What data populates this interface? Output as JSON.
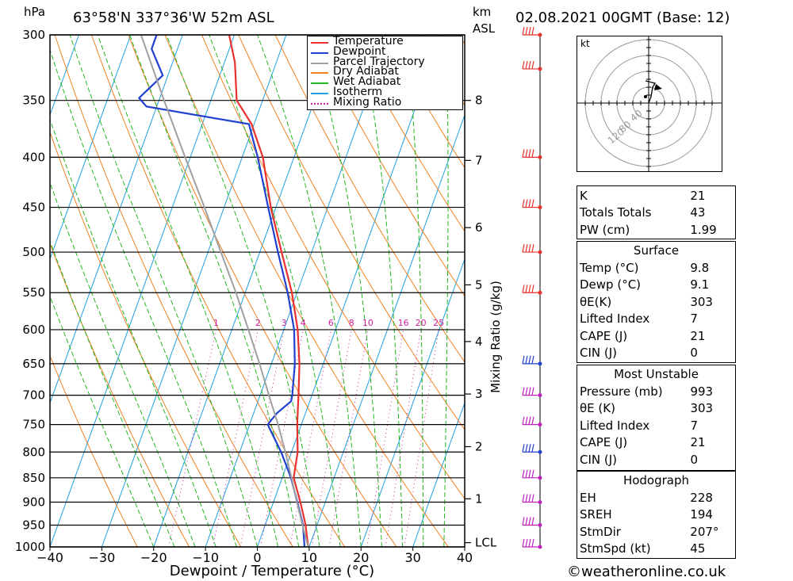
{
  "header": {
    "location": "63°58'N 337°36'W 52m ASL",
    "datetime": "02.08.2021 00GMT (Base: 12)",
    "hpa_label": "hPa",
    "km_label": "km",
    "asl_label": "ASL"
  },
  "chart_data": {
    "type": "line",
    "xlabel": "Dewpoint / Temperature (°C)",
    "ylabel": "hPa",
    "xlim": [
      -40,
      40
    ],
    "ylim": [
      1000,
      300
    ],
    "skew": true,
    "x_ticks": [
      "−40",
      "−30",
      "−20",
      "−10",
      "0",
      "10",
      "20",
      "30",
      "40"
    ],
    "pressure_levels": [
      300,
      350,
      400,
      450,
      500,
      550,
      600,
      650,
      700,
      750,
      800,
      850,
      900,
      950,
      1000
    ],
    "km_ticks": [
      {
        "label": "8",
        "p": 350
      },
      {
        "label": "7",
        "p": 403
      },
      {
        "label": "6",
        "p": 472
      },
      {
        "label": "5",
        "p": 540
      },
      {
        "label": "4",
        "p": 617
      },
      {
        "label": "3",
        "p": 698
      },
      {
        "label": "2",
        "p": 790
      },
      {
        "label": "1",
        "p": 893
      },
      {
        "label": "LCL",
        "p": 990
      }
    ],
    "mixing_ratio_axis_label": "Mixing Ratio (g/kg)",
    "mixing_ratio_labels": [
      "1",
      "2",
      "3",
      "4",
      "6",
      "8",
      "10",
      "16",
      "20",
      "25"
    ],
    "mixing_ratio_values": [
      1,
      2,
      3,
      4,
      6,
      8,
      10,
      16,
      20,
      25
    ],
    "legend": {
      "placement": "top-right",
      "entries": [
        {
          "name": "Temperature",
          "color": "#e8312c",
          "style": "solid"
        },
        {
          "name": "Dewpoint",
          "color": "#2040d0",
          "style": "solid"
        },
        {
          "name": "Parcel Trajectory",
          "color": "#a0a0a0",
          "style": "solid"
        },
        {
          "name": "Dry Adiabat",
          "color": "#f08020",
          "style": "solid"
        },
        {
          "name": "Wet Adiabat",
          "color": "#22b822",
          "style": "solid"
        },
        {
          "name": "Isotherm",
          "color": "#20a0e0",
          "style": "solid"
        },
        {
          "name": "Mixing Ratio",
          "color": "#d020a0",
          "style": "dotted"
        }
      ]
    },
    "series": [
      {
        "name": "Temperature",
        "points": [
          [
            1000,
            9.8
          ],
          [
            950,
            7.8
          ],
          [
            900,
            5.2
          ],
          [
            850,
            2.2
          ],
          [
            800,
            1.2
          ],
          [
            750,
            -0.8
          ],
          [
            700,
            -2.6
          ],
          [
            650,
            -4.6
          ],
          [
            600,
            -7.3
          ],
          [
            550,
            -11.0
          ],
          [
            500,
            -15.8
          ],
          [
            450,
            -21.0
          ],
          [
            400,
            -26.0
          ],
          [
            370,
            -30.5
          ],
          [
            350,
            -35.0
          ],
          [
            320,
            -38.0
          ],
          [
            300,
            -41.0
          ]
        ]
      },
      {
        "name": "Dewpoint",
        "points": [
          [
            1000,
            9.1
          ],
          [
            950,
            7.3
          ],
          [
            900,
            4.6
          ],
          [
            850,
            1.7
          ],
          [
            800,
            -2.0
          ],
          [
            750,
            -6.5
          ],
          [
            730,
            -5.5
          ],
          [
            710,
            -3.6
          ],
          [
            700,
            -3.8
          ],
          [
            650,
            -5.5
          ],
          [
            600,
            -8.0
          ],
          [
            550,
            -11.8
          ],
          [
            500,
            -16.5
          ],
          [
            450,
            -21.5
          ],
          [
            400,
            -27.0
          ],
          [
            370,
            -31.0
          ],
          [
            365,
            -38.0
          ],
          [
            355,
            -52.0
          ],
          [
            348,
            -54.0
          ],
          [
            330,
            -51.0
          ],
          [
            310,
            -55.0
          ],
          [
            300,
            -55.0
          ]
        ]
      },
      {
        "name": "Parcel Trajectory",
        "points": [
          [
            1000,
            9.8
          ],
          [
            950,
            7.2
          ],
          [
            900,
            4.5
          ],
          [
            850,
            1.8
          ],
          [
            800,
            -1.2
          ],
          [
            750,
            -4.5
          ],
          [
            700,
            -8.3
          ],
          [
            650,
            -12.3
          ],
          [
            600,
            -16.8
          ],
          [
            550,
            -21.8
          ],
          [
            500,
            -27.5
          ],
          [
            450,
            -33.8
          ],
          [
            400,
            -41.0
          ],
          [
            350,
            -49.0
          ],
          [
            300,
            -58.0
          ]
        ]
      }
    ]
  },
  "winds_profile": {
    "barb_levels": [
      300,
      325,
      400,
      450,
      500,
      550,
      650,
      700,
      750,
      800,
      850,
      900,
      950,
      1000
    ],
    "colors": {
      "upper": "#e8312c",
      "mid": "#2040d0",
      "low": "#c020c0"
    }
  },
  "hodograph": {
    "unit_label": "kt",
    "ring_labels": [
      "40",
      "80",
      "120"
    ],
    "points": [
      [
        0,
        0
      ],
      [
        3,
        8
      ],
      [
        5,
        20
      ],
      [
        8,
        25
      ],
      [
        -4,
        28
      ]
    ]
  },
  "indices": {
    "top": [
      {
        "label": "K",
        "value": "21"
      },
      {
        "label": "Totals Totals",
        "value": "43"
      },
      {
        "label": "PW (cm)",
        "value": "1.99"
      }
    ],
    "surface_title": "Surface",
    "surface": [
      {
        "label": "Temp (°C)",
        "value": "9.8"
      },
      {
        "label": "Dewp (°C)",
        "value": "9.1"
      },
      {
        "label": "θE(K)",
        "value": "303"
      },
      {
        "label": "Lifted Index",
        "value": "7"
      },
      {
        "label": "CAPE (J)",
        "value": "21"
      },
      {
        "label": "CIN (J)",
        "value": "0"
      }
    ],
    "mu_title": "Most Unstable",
    "mu": [
      {
        "label": "Pressure (mb)",
        "value": "993"
      },
      {
        "label": "θE (K)",
        "value": "303"
      },
      {
        "label": "Lifted Index",
        "value": "7"
      },
      {
        "label": "CAPE (J)",
        "value": "21"
      },
      {
        "label": "CIN (J)",
        "value": "0"
      }
    ],
    "hodo_title": "Hodograph",
    "hodo": [
      {
        "label": "EH",
        "value": "228"
      },
      {
        "label": "SREH",
        "value": "194"
      },
      {
        "label": "StmDir",
        "value": "207°"
      },
      {
        "label": "StmSpd (kt)",
        "value": "45"
      }
    ]
  },
  "footer": {
    "copyright": "©weatheronline.co.uk"
  }
}
